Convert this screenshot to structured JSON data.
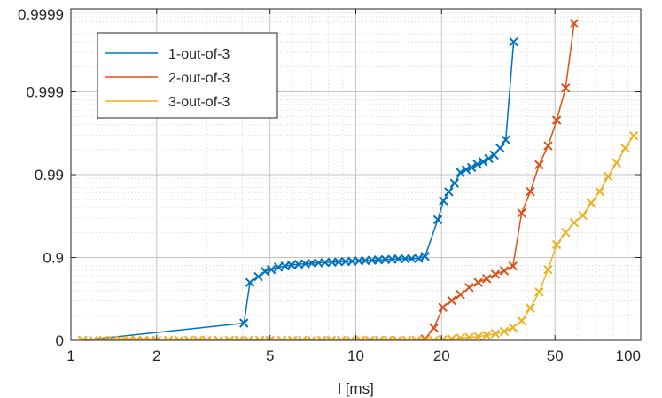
{
  "chart_data": {
    "type": "line",
    "xlabel": "l [ms]",
    "ylabel": "",
    "x_scale": "log",
    "xlim": [
      1,
      100
    ],
    "x_ticks": [
      1,
      2,
      5,
      10,
      20,
      50,
      100
    ],
    "x_tick_labels": [
      "1",
      "2",
      "5",
      "10",
      "20",
      "50",
      "100"
    ],
    "y_scale": "-log10(1-p)",
    "y_ticks": [
      0,
      0.9,
      0.99,
      0.999,
      0.9999
    ],
    "y_tick_labels": [
      "0",
      "0.9",
      "0.99",
      "0.999",
      "0.9999"
    ],
    "ylim": [
      0,
      0.9999
    ],
    "grid": true,
    "legend_position": "top-left",
    "marker": "x",
    "series": [
      {
        "name": "1-out-of-3",
        "color": "#0072BD",
        "x": [
          1.1,
          4.05,
          4.25,
          4.55,
          4.8,
          5.05,
          5.35,
          5.65,
          5.95,
          6.3,
          6.65,
          7.0,
          7.4,
          7.8,
          8.25,
          8.7,
          9.2,
          9.7,
          10.25,
          10.8,
          11.4,
          12.0,
          12.7,
          13.4,
          14.1,
          14.9,
          15.7,
          16.6,
          17.5,
          19.4,
          20.3,
          21.2,
          22.2,
          23.3,
          24.4,
          25.5,
          26.7,
          28.0,
          29.3,
          30.6,
          32.1,
          33.6,
          35.8
        ],
        "y": [
          0,
          0.38,
          0.8,
          0.83,
          0.853,
          0.86,
          0.869,
          0.873,
          0.877,
          0.879,
          0.881,
          0.883,
          0.884,
          0.885,
          0.886,
          0.887,
          0.888,
          0.889,
          0.89,
          0.891,
          0.892,
          0.893,
          0.894,
          0.895,
          0.896,
          0.8965,
          0.897,
          0.8975,
          0.903,
          0.965,
          0.9793,
          0.9839,
          0.9873,
          0.9906,
          0.9913,
          0.9918,
          0.9925,
          0.993,
          0.9936,
          0.9942,
          0.9952,
          0.9962,
          0.99975
        ]
      },
      {
        "name": "2-out-of-3",
        "color": "#D95319",
        "x": [
          1.1,
          1.2,
          1.3,
          1.4,
          1.5,
          1.6,
          1.7,
          1.8,
          1.9,
          2.0,
          2.2,
          2.4,
          2.6,
          2.8,
          3.0,
          3.3,
          3.6,
          3.9,
          4.2,
          4.6,
          5.0,
          5.5,
          6.0,
          6.5,
          7.0,
          7.6,
          8.2,
          8.9,
          9.6,
          10.4,
          11.2,
          12.1,
          13.0,
          14.0,
          15.1,
          16.3,
          17.5,
          18.8,
          20.2,
          21.7,
          23.3,
          25.0,
          26.9,
          28.8,
          30.9,
          33.2,
          35.6,
          38.2,
          41.0,
          44.0,
          47.3,
          50.7,
          54.5,
          58.4
        ],
        "y": [
          0,
          0,
          0,
          0,
          0,
          0,
          0,
          0,
          0,
          0,
          0,
          0,
          0,
          0,
          0,
          0,
          0,
          0,
          0,
          0,
          0,
          0,
          0,
          0,
          0,
          0,
          0,
          0,
          0,
          0,
          0,
          0,
          0,
          0,
          0,
          0,
          0.04,
          0.29,
          0.6,
          0.67,
          0.72,
          0.77,
          0.8,
          0.82,
          0.84,
          0.855,
          0.873,
          0.971,
          0.984,
          0.9924,
          0.9955,
          0.9978,
          0.9991,
          0.99985
        ]
      },
      {
        "name": "3-out-of-3",
        "color": "#EDB120",
        "x": [
          1.1,
          1.2,
          1.3,
          1.4,
          1.5,
          1.6,
          1.7,
          1.8,
          1.9,
          2.0,
          2.2,
          2.4,
          2.6,
          2.8,
          3.0,
          3.3,
          3.6,
          3.9,
          4.2,
          4.6,
          5.0,
          5.5,
          6.0,
          6.5,
          7.0,
          7.6,
          8.2,
          8.9,
          9.6,
          10.4,
          11.2,
          12.1,
          13.0,
          14.0,
          15.1,
          16.3,
          17.5,
          18.8,
          20.2,
          21.7,
          23.3,
          25.0,
          26.9,
          28.8,
          30.9,
          33.2,
          35.6,
          38.2,
          41.0,
          44.0,
          47.3,
          50.7,
          54.5,
          58.4,
          62.6,
          67.0,
          71.8,
          76.9,
          82.3,
          88.2,
          94.5
        ],
        "y": [
          0,
          0,
          0,
          0,
          0,
          0,
          0,
          0,
          0,
          0,
          0,
          0,
          0,
          0,
          0,
          0,
          0,
          0,
          0,
          0,
          0,
          0,
          0,
          0,
          0,
          0,
          0,
          0,
          0,
          0,
          0,
          0,
          0,
          0,
          0,
          0,
          0,
          0,
          0.02,
          0.04,
          0.06,
          0.08,
          0.1,
          0.13,
          0.17,
          0.22,
          0.3,
          0.42,
          0.59,
          0.74,
          0.86,
          0.93,
          0.95,
          0.962,
          0.969,
          0.978,
          0.984,
          0.9895,
          0.9928,
          0.9952,
          0.9966
        ]
      }
    ]
  }
}
